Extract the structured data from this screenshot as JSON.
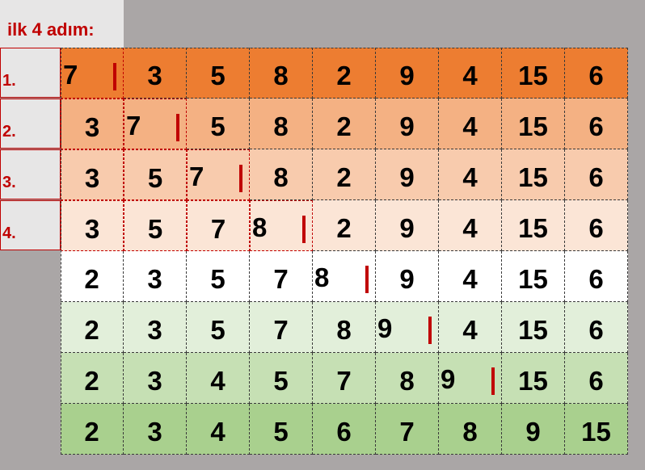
{
  "title": "ilk 4 adım:",
  "step_labels": [
    "1.",
    "2.",
    "3.",
    "4."
  ],
  "colors": {
    "row_backgrounds": [
      "#ed7d31",
      "#f4b183",
      "#f8cbad",
      "#fbe5d6",
      "#ffffff",
      "#e2efda",
      "#c6e0b4",
      "#a9d08e"
    ],
    "accent": "#c00000"
  },
  "rows": [
    {
      "values": [
        "7",
        "3",
        "5",
        "8",
        "2",
        "9",
        "4",
        "15",
        "6"
      ],
      "active_index": 0
    },
    {
      "values": [
        "3",
        "7",
        "5",
        "8",
        "2",
        "9",
        "4",
        "15",
        "6"
      ],
      "active_index": 1
    },
    {
      "values": [
        "3",
        "5",
        "7",
        "8",
        "2",
        "9",
        "4",
        "15",
        "6"
      ],
      "active_index": 2
    },
    {
      "values": [
        "3",
        "5",
        "7",
        "8",
        "2",
        "9",
        "4",
        "15",
        "6"
      ],
      "active_index": 3
    },
    {
      "values": [
        "2",
        "3",
        "5",
        "7",
        "8",
        "9",
        "4",
        "15",
        "6"
      ],
      "active_index": 4
    },
    {
      "values": [
        "2",
        "3",
        "5",
        "7",
        "8",
        "9",
        "4",
        "15",
        "6"
      ],
      "active_index": 5
    },
    {
      "values": [
        "2",
        "3",
        "4",
        "5",
        "7",
        "8",
        "9",
        "15",
        "6"
      ],
      "active_index": 6
    },
    {
      "values": [
        "2",
        "3",
        "4",
        "5",
        "6",
        "7",
        "8",
        "9",
        "15"
      ],
      "active_index": null
    }
  ]
}
